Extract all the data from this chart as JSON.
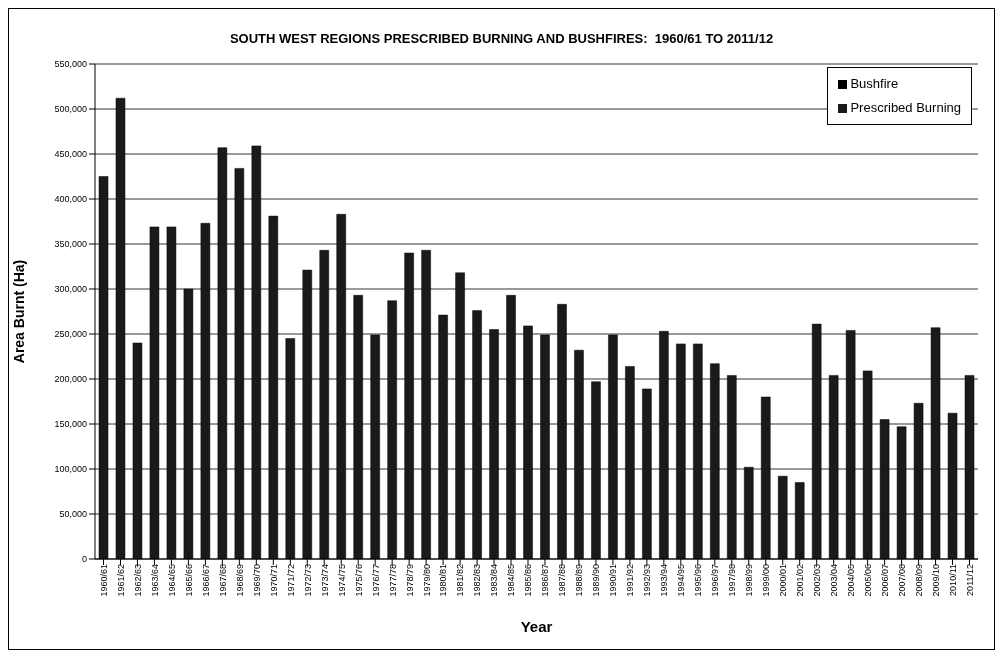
{
  "chart_data": {
    "type": "bar",
    "title": "SOUTH WEST REGIONS PRESCRIBED BURNING AND BUSHFIRES:  1960/61 TO 2011/12",
    "xlabel": "Year",
    "ylabel": "Area Burnt (Ha)",
    "categories": [
      "1960/61",
      "1961/62",
      "1962/63",
      "1963/64",
      "1964/65",
      "1965/66",
      "1966/67",
      "1967/68",
      "1968/69",
      "1969/70",
      "1970/71",
      "1971/72",
      "1972/73",
      "1973/74",
      "1974/75",
      "1975/76",
      "1976/77",
      "1977/78",
      "1978/79",
      "1979/80",
      "1980/81",
      "1981/82",
      "1982/83",
      "1983/84",
      "1984/85",
      "1985/86",
      "1986/87",
      "1987/88",
      "1988/89",
      "1989/90",
      "1990/91",
      "1991/92",
      "1992/93",
      "1993/94",
      "1994/95",
      "1995/96",
      "1996/97",
      "1997/98",
      "1998/99",
      "1999/00",
      "2000/01",
      "2001/02",
      "2002/03",
      "2003/04",
      "2004/05",
      "2005/06",
      "2006/07",
      "2007/08",
      "2008/09",
      "2009/10",
      "2010/11",
      "2011/12"
    ],
    "series": [
      {
        "name": "Bushfire",
        "color": "#000000",
        "values": [
          null,
          null,
          null,
          null,
          null,
          null,
          null,
          null,
          null,
          null,
          null,
          null,
          null,
          null,
          null,
          null,
          null,
          null,
          null,
          null,
          null,
          null,
          null,
          null,
          null,
          null,
          null,
          null,
          null,
          null,
          null,
          null,
          null,
          null,
          null,
          null,
          null,
          null,
          null,
          null,
          null,
          null,
          null,
          null,
          null,
          null,
          null,
          null,
          null,
          null,
          null,
          null
        ]
      },
      {
        "name": "Prescribed Burning",
        "color": "#1a1a1a",
        "values": [
          425000,
          512000,
          240000,
          369000,
          369000,
          300000,
          373000,
          457000,
          434000,
          459000,
          381000,
          245000,
          321000,
          343000,
          383000,
          293000,
          249000,
          287000,
          340000,
          343000,
          271000,
          318000,
          276000,
          255000,
          293000,
          259000,
          249000,
          283000,
          232000,
          197000,
          249000,
          214000,
          189000,
          253000,
          239000,
          239000,
          217000,
          204000,
          102000,
          180000,
          92000,
          85000,
          261000,
          204000,
          254000,
          209000,
          155000,
          147000,
          173000,
          257000,
          162000,
          204000
        ]
      }
    ],
    "stacked": true,
    "ylim": [
      0,
      550000
    ],
    "yticks": [
      0,
      {
        "value": 50000,
        "label": "50,000"
      },
      {
        "value": 100000,
        "label": "100,000"
      },
      {
        "value": 150000,
        "label": "150,000"
      },
      {
        "value": 200000,
        "label": "200,000"
      },
      {
        "value": 250000,
        "label": "250,000"
      },
      {
        "value": 300000,
        "label": "300,000"
      },
      {
        "value": 350000,
        "label": "350,000"
      },
      {
        "value": 400000,
        "label": "400,000"
      },
      {
        "value": 450000,
        "label": "450,000"
      },
      {
        "value": 500000,
        "label": "500,000"
      },
      {
        "value": 550000,
        "label": "550,000"
      }
    ],
    "grid": "y",
    "legend": "top right"
  }
}
